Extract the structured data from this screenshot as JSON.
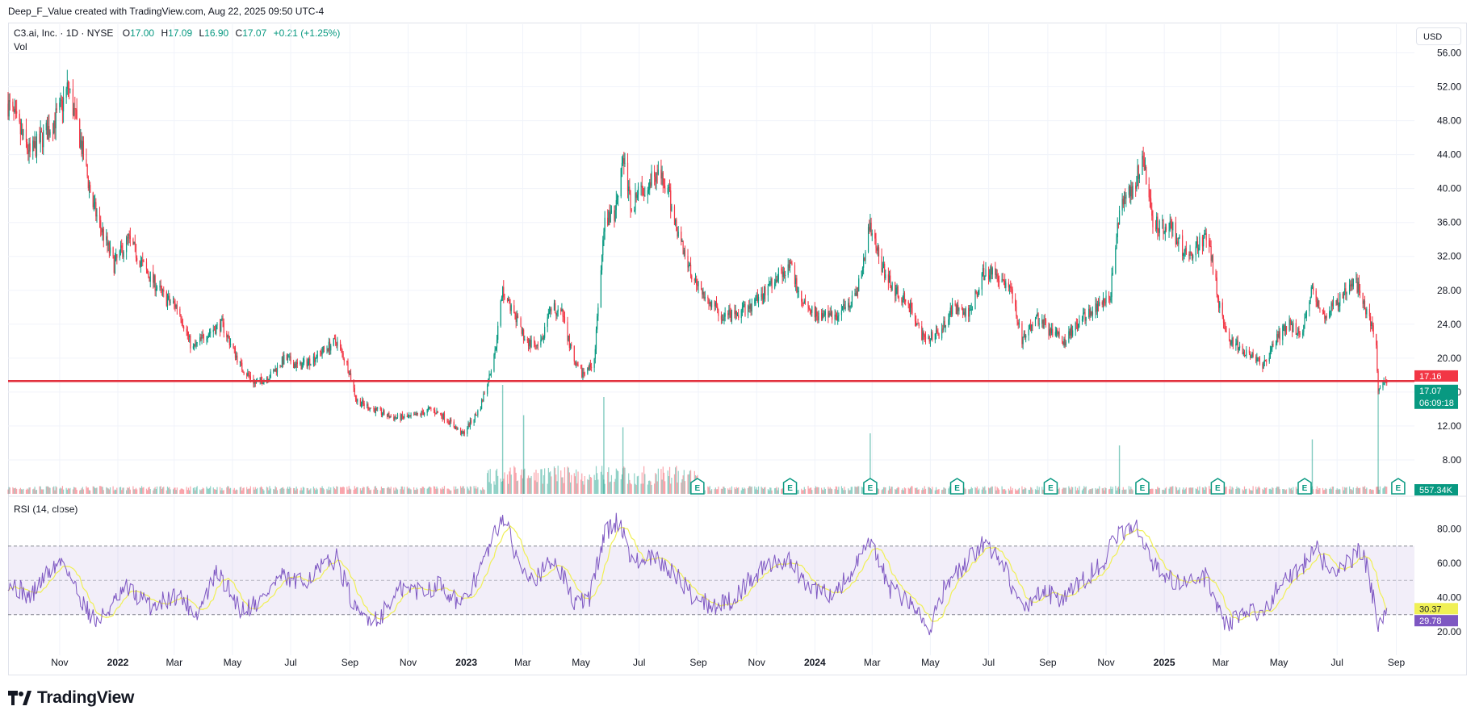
{
  "header": {
    "attribution": "Deep_F_Value created with TradingView.com, Aug 22, 2025 09:50 UTC-4"
  },
  "legend": {
    "symbol": "C3.ai, Inc. · 1D · NYSE",
    "o_key": "O",
    "o_val": "17.00",
    "h_key": "H",
    "h_val": "17.09",
    "l_key": "L",
    "l_val": "16.90",
    "c_key": "C",
    "c_val": "17.07",
    "change": "+0.21 (+1.25%)",
    "vol": "Vol"
  },
  "currency": "USD",
  "rsi_label": "RSI (14, close)",
  "footer": {
    "brand": "TradingView"
  },
  "colors": {
    "up": "#089981",
    "down": "#f23645",
    "rsi": "#7e57c2",
    "rsi_ma": "#f0f055",
    "line": "#e2313e"
  },
  "chart_data": [
    {
      "type": "candlestick",
      "symbol": "C3.ai, Inc.",
      "interval": "1D",
      "ylim": [
        4,
        57
      ],
      "ytick_labels": [
        "8.00",
        "12.00",
        "16.00",
        "20.00",
        "24.00",
        "28.00",
        "32.00",
        "36.00",
        "40.00",
        "44.00",
        "48.00",
        "52.00",
        "56.00"
      ],
      "ytick_values": [
        8,
        12,
        16,
        20,
        24,
        28,
        32,
        36,
        40,
        44,
        48,
        52,
        56
      ],
      "xtick_labels": [
        "Nov",
        "2022",
        "Mar",
        "May",
        "Jul",
        "Sep",
        "Nov",
        "2023",
        "Mar",
        "May",
        "Jul",
        "Sep",
        "Nov",
        "2024",
        "Mar",
        "May",
        "Jul",
        "Sep",
        "Nov",
        "2025",
        "Mar",
        "May",
        "Jul",
        "Sep"
      ],
      "xtick_dates": [
        "2021-11-01",
        "2022-01-01",
        "2022-03-01",
        "2022-05-01",
        "2022-07-01",
        "2022-09-01",
        "2022-11-01",
        "2023-01-01",
        "2023-03-01",
        "2023-05-01",
        "2023-07-01",
        "2023-09-01",
        "2023-11-01",
        "2024-01-01",
        "2024-03-01",
        "2024-05-01",
        "2024-07-01",
        "2024-09-01",
        "2024-11-01",
        "2025-01-01",
        "2025-03-01",
        "2025-05-01",
        "2025-07-01",
        "2025-09-01"
      ],
      "x_range": [
        "2021-09-08",
        "2025-09-20"
      ],
      "close_path": [
        [
          "2021-09-08",
          50
        ],
        [
          "2021-10-01",
          44
        ],
        [
          "2021-10-20",
          47
        ],
        [
          "2021-11-01",
          49
        ],
        [
          "2021-11-10",
          52
        ],
        [
          "2021-11-22",
          46
        ],
        [
          "2021-12-06",
          38
        ],
        [
          "2021-12-28",
          31
        ],
        [
          "2022-01-12",
          34
        ],
        [
          "2022-02-01",
          30
        ],
        [
          "2022-02-20",
          27
        ],
        [
          "2022-03-05",
          26
        ],
        [
          "2022-03-20",
          21
        ],
        [
          "2022-04-05",
          23
        ],
        [
          "2022-04-20",
          24
        ],
        [
          "2022-05-10",
          19
        ],
        [
          "2022-05-25",
          17
        ],
        [
          "2022-06-10",
          18
        ],
        [
          "2022-06-25",
          20
        ],
        [
          "2022-07-10",
          19
        ],
        [
          "2022-07-25",
          20
        ],
        [
          "2022-08-05",
          21
        ],
        [
          "2022-08-18",
          22
        ],
        [
          "2022-08-30",
          19
        ],
        [
          "2022-09-08",
          15
        ],
        [
          "2022-09-25",
          14
        ],
        [
          "2022-10-15",
          13
        ],
        [
          "2022-11-05",
          13
        ],
        [
          "2022-11-25",
          14
        ],
        [
          "2022-12-10",
          13
        ],
        [
          "2022-12-28",
          11
        ],
        [
          "2023-01-15",
          14
        ],
        [
          "2023-01-30",
          20
        ],
        [
          "2023-02-08",
          28
        ],
        [
          "2023-02-20",
          25
        ],
        [
          "2023-03-05",
          22
        ],
        [
          "2023-03-18",
          21
        ],
        [
          "2023-04-01",
          26
        ],
        [
          "2023-04-12",
          25
        ],
        [
          "2023-04-25",
          19
        ],
        [
          "2023-05-05",
          18
        ],
        [
          "2023-05-15",
          20
        ],
        [
          "2023-05-26",
          36
        ],
        [
          "2023-06-05",
          37
        ],
        [
          "2023-06-14",
          44
        ],
        [
          "2023-06-22",
          38
        ],
        [
          "2023-07-05",
          40
        ],
        [
          "2023-07-18",
          42
        ],
        [
          "2023-07-30",
          40
        ],
        [
          "2023-08-10",
          35
        ],
        [
          "2023-08-25",
          30
        ],
        [
          "2023-09-10",
          27
        ],
        [
          "2023-09-25",
          25
        ],
        [
          "2023-10-10",
          25
        ],
        [
          "2023-10-25",
          26
        ],
        [
          "2023-11-10",
          28
        ],
        [
          "2023-11-25",
          30
        ],
        [
          "2023-12-05",
          31
        ],
        [
          "2023-12-18",
          27
        ],
        [
          "2024-01-05",
          25
        ],
        [
          "2024-01-25",
          25
        ],
        [
          "2024-02-15",
          28
        ],
        [
          "2024-02-28",
          36
        ],
        [
          "2024-03-10",
          31
        ],
        [
          "2024-03-25",
          28
        ],
        [
          "2024-04-10",
          26
        ],
        [
          "2024-04-25",
          22
        ],
        [
          "2024-05-10",
          23
        ],
        [
          "2024-05-25",
          26
        ],
        [
          "2024-06-10",
          25
        ],
        [
          "2024-06-25",
          30
        ],
        [
          "2024-07-10",
          30
        ],
        [
          "2024-07-25",
          28
        ],
        [
          "2024-08-05",
          22
        ],
        [
          "2024-08-20",
          25
        ],
        [
          "2024-09-05",
          23
        ],
        [
          "2024-09-18",
          22
        ],
        [
          "2024-10-01",
          24
        ],
        [
          "2024-10-20",
          26
        ],
        [
          "2024-11-05",
          27
        ],
        [
          "2024-11-15",
          37
        ],
        [
          "2024-11-28",
          40
        ],
        [
          "2024-12-10",
          43
        ],
        [
          "2024-12-20",
          36
        ],
        [
          "2025-01-10",
          35
        ],
        [
          "2025-01-25",
          32
        ],
        [
          "2025-02-05",
          33
        ],
        [
          "2025-02-15",
          35
        ],
        [
          "2025-02-28",
          26
        ],
        [
          "2025-03-10",
          22
        ],
        [
          "2025-03-25",
          21
        ],
        [
          "2025-04-05",
          20
        ],
        [
          "2025-04-15",
          19
        ],
        [
          "2025-04-28",
          22
        ],
        [
          "2025-05-10",
          24
        ],
        [
          "2025-05-25",
          23
        ],
        [
          "2025-06-05",
          28
        ],
        [
          "2025-06-18",
          25
        ],
        [
          "2025-07-05",
          27
        ],
        [
          "2025-07-20",
          29
        ],
        [
          "2025-07-28",
          27
        ],
        [
          "2025-08-05",
          24
        ],
        [
          "2025-08-11",
          22
        ],
        [
          "2025-08-13",
          16
        ],
        [
          "2025-08-18",
          17.5
        ],
        [
          "2025-08-22",
          17.07
        ]
      ],
      "horizontal_line": 17.3,
      "last_price_labels": [
        "17.16",
        "17.07",
        "06:09:18"
      ],
      "last_volume_label": "557.34K",
      "earnings_markers": [
        "2023-08-31",
        "2023-12-06",
        "2024-02-28",
        "2024-05-29",
        "2024-09-04",
        "2024-12-09",
        "2025-02-26",
        "2025-05-28",
        "2025-09-03"
      ],
      "earnings_label": "E",
      "volume_spikes": [
        [
          "2023-02-08",
          0.9
        ],
        [
          "2023-03-02",
          0.65
        ],
        [
          "2023-05-25",
          0.8
        ],
        [
          "2023-06-14",
          0.55
        ],
        [
          "2024-02-28",
          0.5
        ],
        [
          "2024-11-15",
          0.4
        ],
        [
          "2025-06-05",
          0.45
        ],
        [
          "2025-08-13",
          0.85
        ]
      ]
    },
    {
      "type": "line",
      "title": "RSI (14, close)",
      "ylim": [
        12,
        92
      ],
      "ytick_labels": [
        "20.00",
        "40.00",
        "60.00",
        "80.00"
      ],
      "ytick_values": [
        20,
        40,
        60,
        80
      ],
      "bands": [
        30,
        50,
        70
      ],
      "rsi_path": [
        [
          "2021-09-08",
          50
        ],
        [
          "2021-10-01",
          40
        ],
        [
          "2021-10-20",
          55
        ],
        [
          "2021-11-05",
          62
        ],
        [
          "2021-11-22",
          40
        ],
        [
          "2021-12-10",
          25
        ],
        [
          "2022-01-10",
          45
        ],
        [
          "2022-02-05",
          35
        ],
        [
          "2022-03-05",
          42
        ],
        [
          "2022-03-25",
          30
        ],
        [
          "2022-04-15",
          55
        ],
        [
          "2022-05-10",
          33
        ],
        [
          "2022-05-30",
          38
        ],
        [
          "2022-06-20",
          52
        ],
        [
          "2022-07-10",
          48
        ],
        [
          "2022-07-30",
          56
        ],
        [
          "2022-08-18",
          63
        ],
        [
          "2022-09-08",
          30
        ],
        [
          "2022-10-01",
          28
        ],
        [
          "2022-10-25",
          45
        ],
        [
          "2022-11-15",
          44
        ],
        [
          "2022-12-05",
          48
        ],
        [
          "2022-12-28",
          35
        ],
        [
          "2023-01-20",
          62
        ],
        [
          "2023-02-08",
          88
        ],
        [
          "2023-02-25",
          60
        ],
        [
          "2023-03-15",
          52
        ],
        [
          "2023-04-05",
          62
        ],
        [
          "2023-04-25",
          36
        ],
        [
          "2023-05-10",
          40
        ],
        [
          "2023-05-26",
          78
        ],
        [
          "2023-06-10",
          85
        ],
        [
          "2023-06-25",
          60
        ],
        [
          "2023-07-15",
          63
        ],
        [
          "2023-08-05",
          55
        ],
        [
          "2023-08-25",
          42
        ],
        [
          "2023-09-15",
          35
        ],
        [
          "2023-10-05",
          38
        ],
        [
          "2023-10-25",
          50
        ],
        [
          "2023-11-15",
          60
        ],
        [
          "2023-12-05",
          62
        ],
        [
          "2023-12-25",
          45
        ],
        [
          "2024-01-20",
          42
        ],
        [
          "2024-02-10",
          55
        ],
        [
          "2024-02-28",
          72
        ],
        [
          "2024-03-20",
          45
        ],
        [
          "2024-04-15",
          35
        ],
        [
          "2024-04-28",
          20
        ],
        [
          "2024-05-15",
          45
        ],
        [
          "2024-06-05",
          58
        ],
        [
          "2024-06-25",
          72
        ],
        [
          "2024-07-15",
          62
        ],
        [
          "2024-08-05",
          32
        ],
        [
          "2024-08-25",
          45
        ],
        [
          "2024-09-15",
          38
        ],
        [
          "2024-10-05",
          48
        ],
        [
          "2024-10-30",
          62
        ],
        [
          "2024-11-15",
          78
        ],
        [
          "2024-12-05",
          80
        ],
        [
          "2024-12-25",
          55
        ],
        [
          "2025-01-20",
          48
        ],
        [
          "2025-02-15",
          52
        ],
        [
          "2025-03-05",
          25
        ],
        [
          "2025-03-25",
          30
        ],
        [
          "2025-04-15",
          32
        ],
        [
          "2025-05-05",
          50
        ],
        [
          "2025-05-25",
          58
        ],
        [
          "2025-06-10",
          68
        ],
        [
          "2025-06-25",
          52
        ],
        [
          "2025-07-15",
          62
        ],
        [
          "2025-07-28",
          68
        ],
        [
          "2025-08-08",
          40
        ],
        [
          "2025-08-13",
          20
        ],
        [
          "2025-08-18",
          30
        ],
        [
          "2025-08-22",
          29.78
        ]
      ],
      "rsi_value_label": "29.78",
      "rsi_ma_value_label": "30.37",
      "partial_tick_label": "40.00"
    }
  ]
}
